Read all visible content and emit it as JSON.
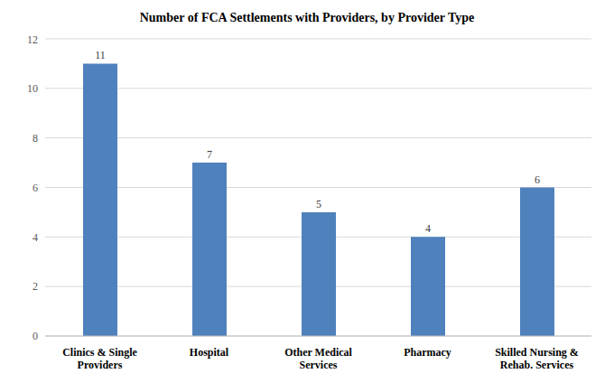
{
  "chart_data": {
    "type": "bar",
    "title": "Number of FCA Settlements with Providers, by Provider Type",
    "categories": [
      "Clinics & Single Providers",
      "Hospital",
      "Other Medical Services",
      "Pharmacy",
      "Skilled Nursing & Rehab. Services"
    ],
    "values": [
      11,
      7,
      5,
      4,
      6
    ],
    "color": "#4f81bd",
    "ylim": [
      0,
      12
    ],
    "yticks": [
      0,
      2,
      4,
      6,
      8,
      10,
      12
    ],
    "grid": true,
    "data_labels": true
  }
}
